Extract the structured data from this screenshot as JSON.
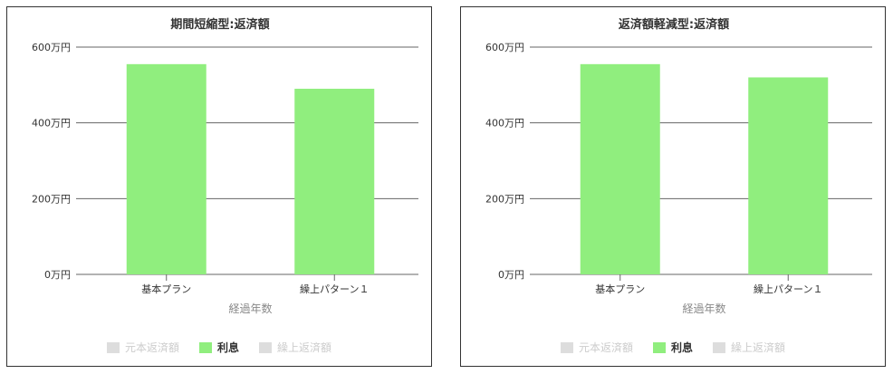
{
  "colors": {
    "interest": "#90ee7e",
    "disabled": "#dddddd"
  },
  "chart_data": [
    {
      "type": "bar",
      "title": "期間短縮型:返済額",
      "xlabel": "経過年数",
      "categories": [
        "基本プラン",
        "繰上パターン１"
      ],
      "y_tick_labels": [
        "0万円",
        "200万円",
        "400万円",
        "600万円"
      ],
      "ylim": [
        0,
        600
      ],
      "grid": true,
      "series": [
        {
          "name": "元本返済額",
          "values": [
            0,
            0
          ],
          "visible": false
        },
        {
          "name": "利息",
          "values": [
            555,
            490
          ],
          "visible": true
        },
        {
          "name": "繰上返済額",
          "values": [
            0,
            0
          ],
          "visible": false
        }
      ],
      "legend_position": "bottom"
    },
    {
      "type": "bar",
      "title": "返済額軽減型:返済額",
      "xlabel": "経過年数",
      "categories": [
        "基本プラン",
        "繰上パターン１"
      ],
      "y_tick_labels": [
        "0万円",
        "200万円",
        "400万円",
        "600万円"
      ],
      "ylim": [
        0,
        600
      ],
      "grid": true,
      "series": [
        {
          "name": "元本返済額",
          "values": [
            0,
            0
          ],
          "visible": false
        },
        {
          "name": "利息",
          "values": [
            555,
            520
          ],
          "visible": true
        },
        {
          "name": "繰上返済額",
          "values": [
            0,
            0
          ],
          "visible": false
        }
      ],
      "legend_position": "bottom"
    }
  ]
}
